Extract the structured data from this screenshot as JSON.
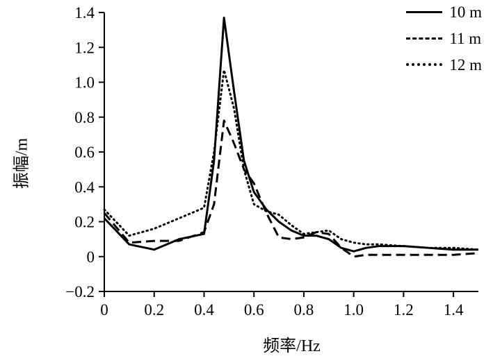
{
  "chart_data": {
    "type": "line",
    "title": "",
    "xlabel": "频率/Hz",
    "ylabel": "振幅/m",
    "xlim": [
      0,
      1.5
    ],
    "ylim": [
      -0.2,
      1.4
    ],
    "grid": false,
    "legend_position": "top-right",
    "x_ticks": [
      0,
      0.2,
      0.4,
      0.6,
      0.8,
      1.0,
      1.2,
      1.4
    ],
    "x_tick_labels": [
      "0",
      "0.2",
      "0.4",
      "0.6",
      "0.8",
      "1.0",
      "1.2",
      "1.4"
    ],
    "y_ticks": [
      -0.2,
      0,
      0.2,
      0.4,
      0.6,
      0.8,
      1.0,
      1.2,
      1.4
    ],
    "y_tick_labels": [
      "−0.2",
      "0",
      "0.2",
      "0.4",
      "0.6",
      "0.8",
      "1.0",
      "1.2",
      "1.4"
    ],
    "colors": {
      "line": "#000000",
      "background": "#ffffff"
    },
    "x": [
      0,
      0.1,
      0.2,
      0.3,
      0.4,
      0.44,
      0.48,
      0.52,
      0.56,
      0.6,
      0.65,
      0.7,
      0.75,
      0.8,
      0.85,
      0.9,
      0.95,
      1.0,
      1.05,
      1.1,
      1.2,
      1.3,
      1.4,
      1.5
    ],
    "series": [
      {
        "name": "10 m",
        "style": "solid",
        "values": [
          0.22,
          0.07,
          0.04,
          0.1,
          0.13,
          0.55,
          1.37,
          0.95,
          0.55,
          0.37,
          0.27,
          0.2,
          0.15,
          0.12,
          0.12,
          0.1,
          0.05,
          0.03,
          0.05,
          0.06,
          0.06,
          0.05,
          0.04,
          0.04
        ]
      },
      {
        "name": "11 m",
        "style": "dashed",
        "values": [
          0.25,
          0.08,
          0.09,
          0.09,
          0.14,
          0.3,
          0.78,
          0.65,
          0.5,
          0.42,
          0.25,
          0.11,
          0.1,
          0.11,
          0.14,
          0.13,
          0.05,
          0.0,
          0.01,
          0.01,
          0.01,
          0.01,
          0.01,
          0.02
        ]
      },
      {
        "name": "12 m",
        "style": "dotted",
        "values": [
          0.27,
          0.12,
          0.16,
          0.22,
          0.28,
          0.6,
          1.07,
          0.85,
          0.5,
          0.3,
          0.26,
          0.24,
          0.18,
          0.13,
          0.14,
          0.15,
          0.1,
          0.08,
          0.07,
          0.07,
          0.06,
          0.05,
          0.05,
          0.04
        ]
      }
    ]
  }
}
